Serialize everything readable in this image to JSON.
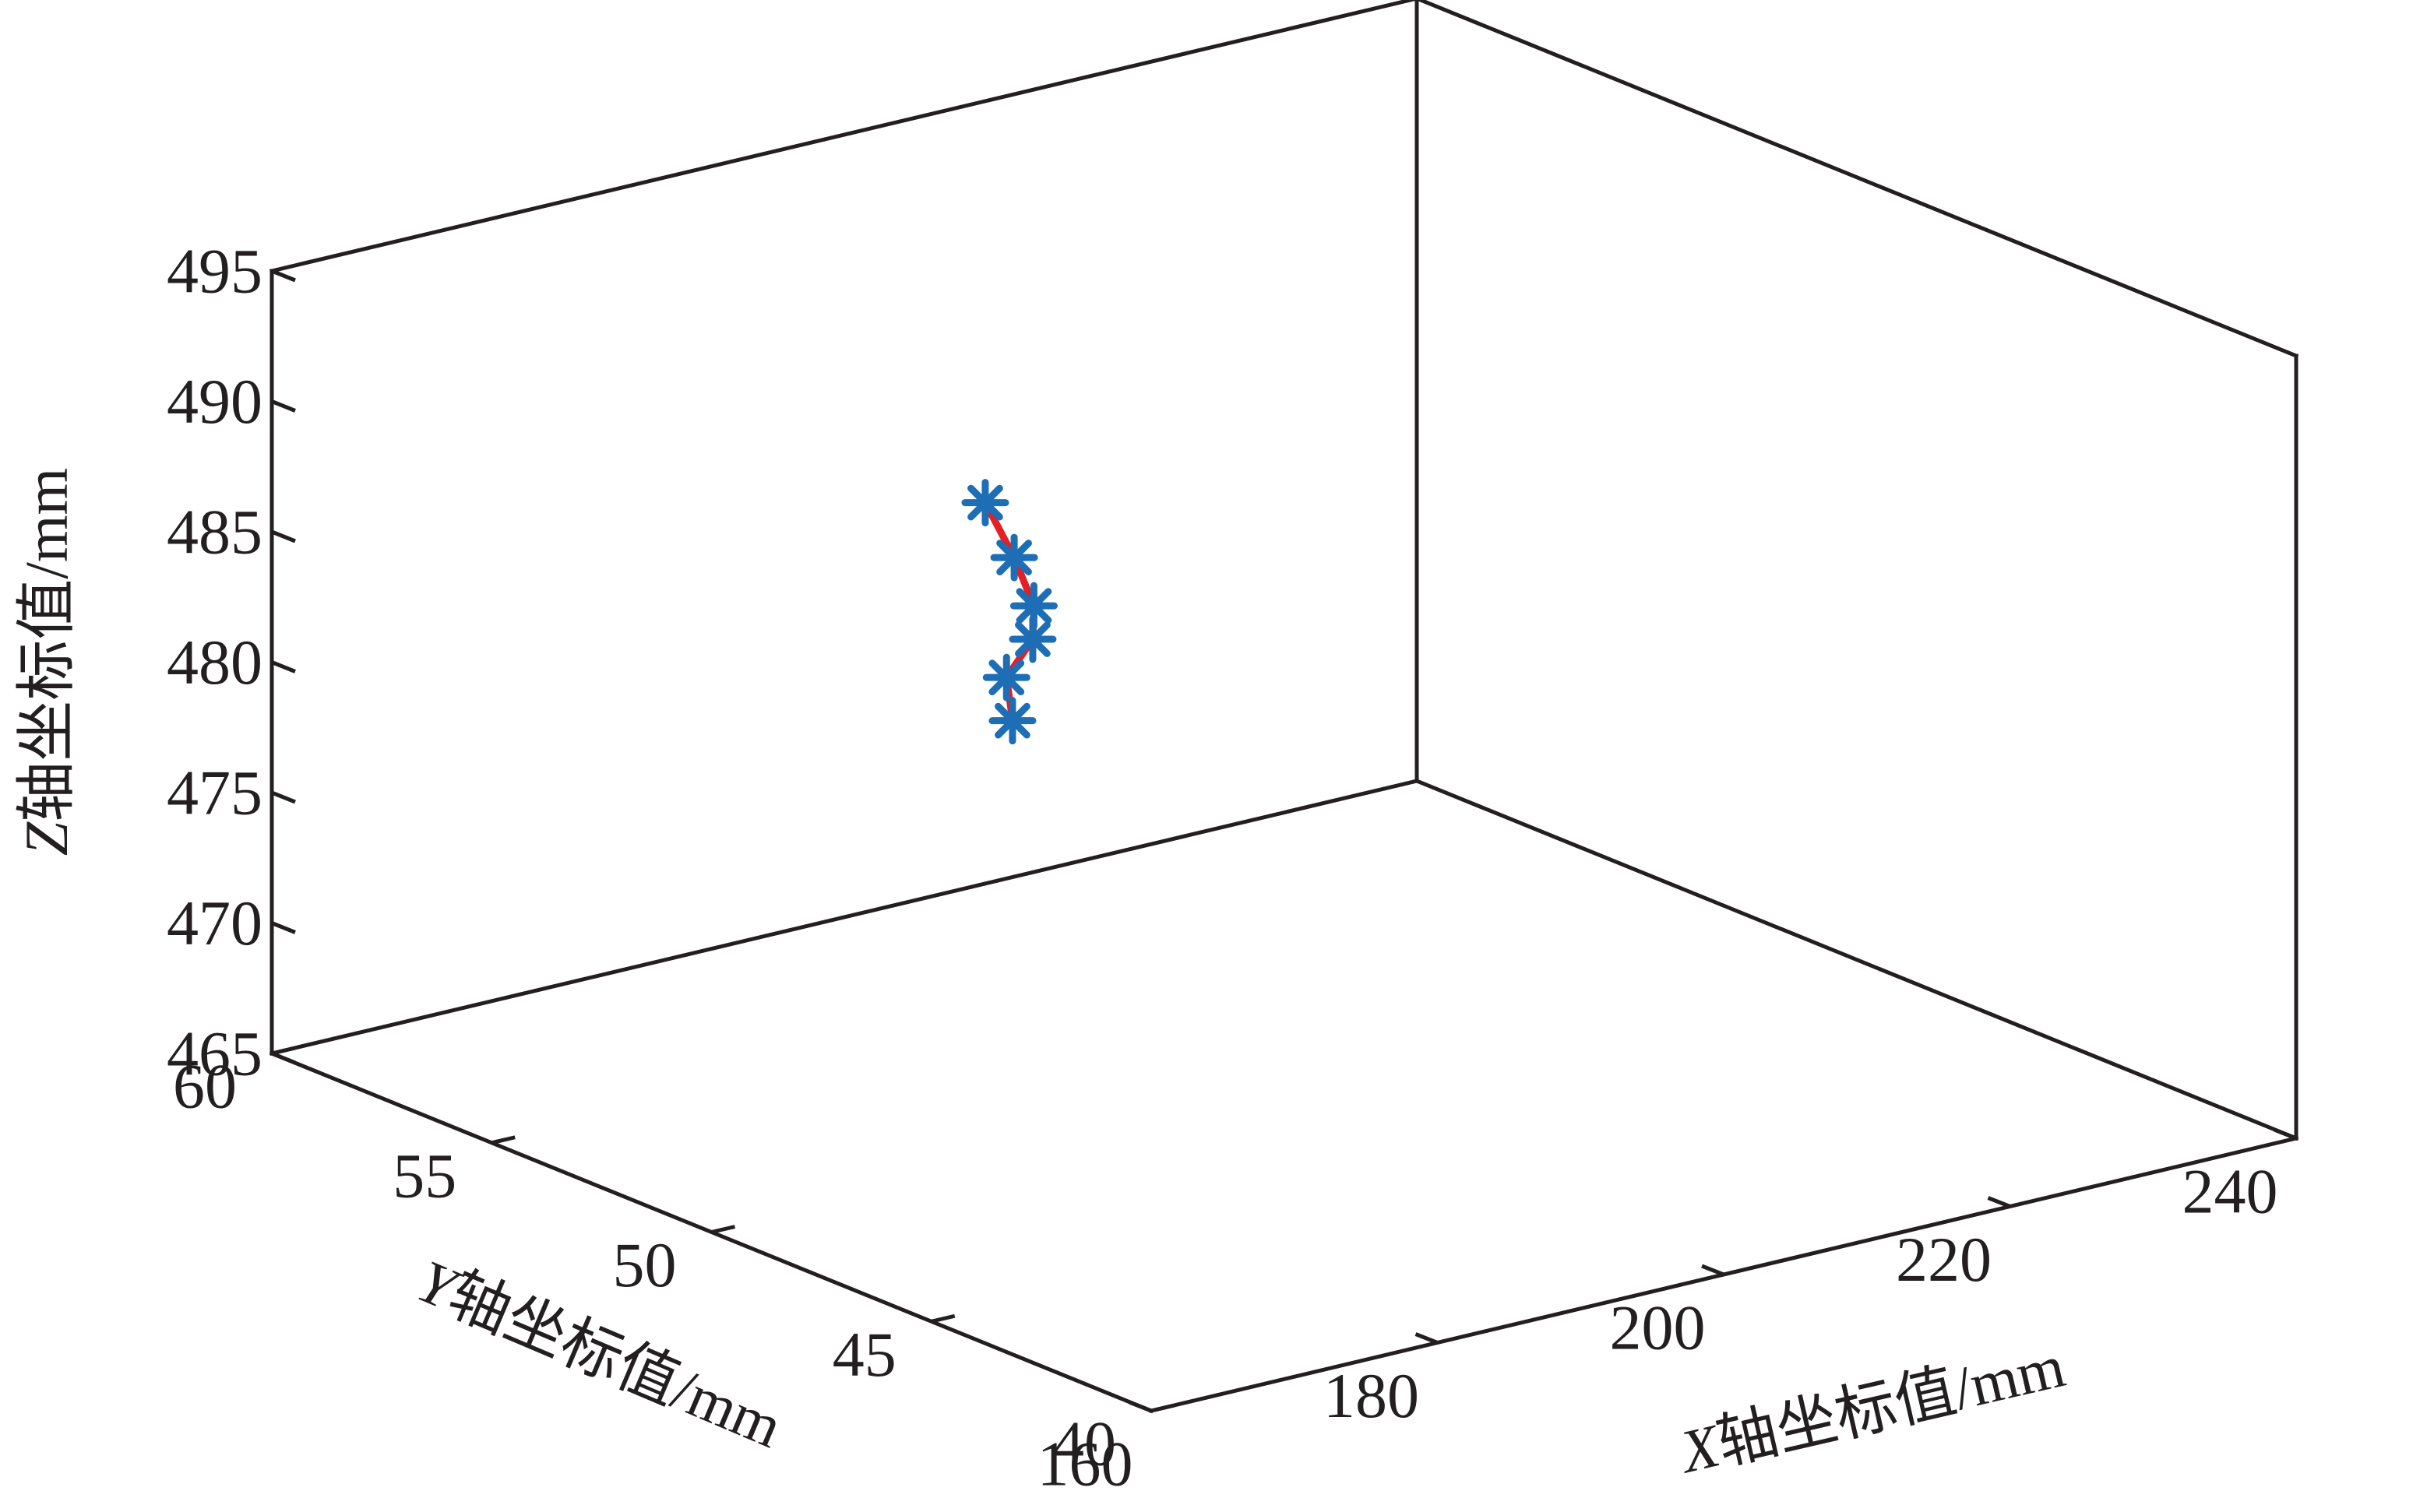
{
  "chart_data": {
    "type": "line",
    "subtype": "3d-line-with-markers",
    "title": "",
    "xlabel": {
      "var": "X",
      "text": "轴坐标值/mm"
    },
    "ylabel": {
      "var": "Y",
      "text": "轴坐标值/mm"
    },
    "zlabel": {
      "var": "Z",
      "text": "轴坐标值/mm"
    },
    "xlim": [
      160,
      240
    ],
    "ylim": [
      40,
      60
    ],
    "zlim": [
      465,
      495
    ],
    "x_ticks": [
      160,
      180,
      200,
      220,
      240
    ],
    "y_ticks": [
      40,
      45,
      50,
      55,
      60
    ],
    "z_ticks": [
      465,
      470,
      475,
      480,
      485,
      490,
      495
    ],
    "grid": false,
    "series": [
      {
        "line_color": "#e41f25",
        "marker": "asterisk",
        "marker_color": "#1e6eb5",
        "x": [
          191.2,
          191.9,
          194.6,
          196.3,
          199.2,
          201.0
        ],
        "y": [
          53.93,
          53.5,
          53.93,
          54.51,
          56.05,
          56.5
        ],
        "z": [
          486.2,
          484.3,
          481.8,
          479.9,
          477.0,
          474.8
        ]
      }
    ]
  }
}
